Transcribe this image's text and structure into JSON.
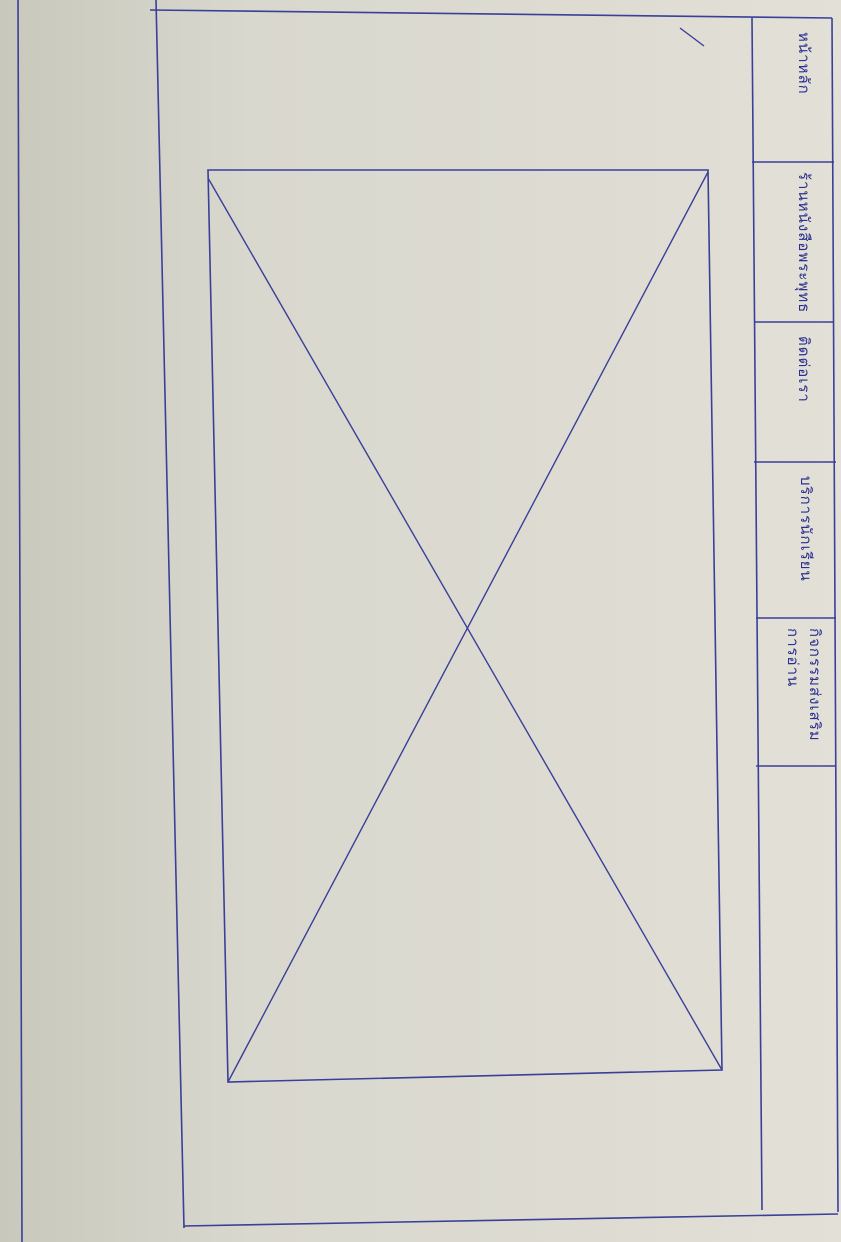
{
  "nav": {
    "items": [
      {
        "label": "หน้าหลัก"
      },
      {
        "label": "ร้านหนังสือพระพุทธ"
      },
      {
        "label": "ติดต่อเรา"
      },
      {
        "label": "บริการนักเรียน"
      },
      {
        "label": "กิจกรรมส่งเสริมการอ่าน"
      }
    ]
  },
  "colors": {
    "ink": "#2b2f8f",
    "paper": "#dedcd2"
  }
}
